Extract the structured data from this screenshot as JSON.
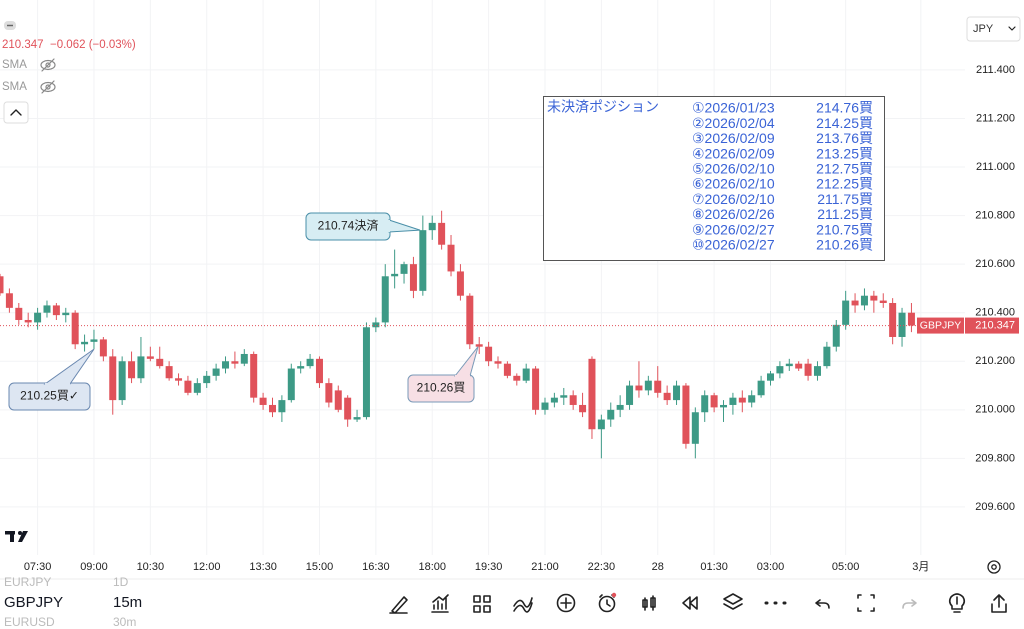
{
  "chart_data": {
    "type": "candlestick",
    "symbol": "GBPJPY",
    "currency": "JPY",
    "last_price": 210.347,
    "change_text": "−0.062 (−0.03%)",
    "indicators": [
      "SMA",
      "SMA"
    ],
    "up_color": "#3d9a86",
    "down_color": "#e0525a",
    "open": [
      210.55,
      210.48,
      210.42,
      210.37,
      210.36,
      210.4,
      210.43,
      210.39,
      210.4,
      210.27,
      210.28,
      210.29,
      210.22,
      210.04,
      210.2,
      210.13,
      210.22,
      210.21,
      210.18,
      210.13,
      210.12,
      210.07,
      210.11,
      210.14,
      210.17,
      210.2,
      210.19,
      210.23,
      210.05,
      210.02,
      209.99,
      210.04,
      210.17,
      210.18,
      210.21,
      210.11,
      210.08,
      210.05,
      209.96,
      209.97,
      210.34,
      210.36,
      210.55,
      210.56,
      210.6,
      210.49,
      210.74,
      210.77,
      210.68,
      210.57,
      210.47,
      210.27,
      210.26,
      210.2,
      210.19,
      210.14,
      210.12,
      210.17,
      210.0,
      210.03,
      210.05,
      210.06,
      210.02,
      210.21,
      209.92,
      209.96,
      210.0,
      210.02,
      210.1,
      210.08,
      210.12,
      210.07,
      210.04,
      210.1,
      209.86,
      209.99,
      210.06,
      210.01,
      210.02,
      210.05,
      210.03,
      210.06,
      210.12,
      210.15,
      210.18,
      210.19,
      210.19,
      210.14,
      210.18,
      210.26,
      210.35,
      210.45,
      210.43,
      210.47,
      210.45,
      210.44,
      210.3,
      210.4
    ],
    "high": [
      210.56,
      210.5,
      210.44,
      210.4,
      210.42,
      210.45,
      210.44,
      210.42,
      210.41,
      210.31,
      210.33,
      210.3,
      210.25,
      210.22,
      210.24,
      210.3,
      210.26,
      210.26,
      210.2,
      210.15,
      210.14,
      210.13,
      210.16,
      210.19,
      210.22,
      210.24,
      210.25,
      210.24,
      210.07,
      210.05,
      210.06,
      210.19,
      210.2,
      210.23,
      210.22,
      210.13,
      210.1,
      210.06,
      210.0,
      210.36,
      210.38,
      210.6,
      210.66,
      210.61,
      210.63,
      210.8,
      210.8,
      210.82,
      210.72,
      210.6,
      210.48,
      210.3,
      210.28,
      210.22,
      210.2,
      210.15,
      210.19,
      210.18,
      210.05,
      210.07,
      210.09,
      210.08,
      210.07,
      210.22,
      209.98,
      210.03,
      210.06,
      210.12,
      210.2,
      210.14,
      210.18,
      210.1,
      210.12,
      210.11,
      210.01,
      210.08,
      210.07,
      210.04,
      210.07,
      210.08,
      210.08,
      210.14,
      210.16,
      210.2,
      210.21,
      210.2,
      210.21,
      210.2,
      210.28,
      210.37,
      210.49,
      210.48,
      210.5,
      210.49,
      210.48,
      210.46,
      210.42,
      210.44
    ],
    "low": [
      210.47,
      210.4,
      210.35,
      210.34,
      210.33,
      210.38,
      210.37,
      210.36,
      210.25,
      210.24,
      210.25,
      210.2,
      209.98,
      210.02,
      210.11,
      210.11,
      210.2,
      210.17,
      210.12,
      210.1,
      210.06,
      210.06,
      210.09,
      210.12,
      210.15,
      210.17,
      210.18,
      210.03,
      210.0,
      209.97,
      209.95,
      210.03,
      210.15,
      210.17,
      210.09,
      210.01,
      209.99,
      209.93,
      209.95,
      209.96,
      210.32,
      210.34,
      210.5,
      210.52,
      210.46,
      210.47,
      210.7,
      210.66,
      210.55,
      210.45,
      210.25,
      210.23,
      210.18,
      210.17,
      210.13,
      210.1,
      210.11,
      209.98,
      209.98,
      210.01,
      210.02,
      210.0,
      209.97,
      209.88,
      209.8,
      209.93,
      209.97,
      210.0,
      210.05,
      210.06,
      210.05,
      210.02,
      210.02,
      209.84,
      209.8,
      209.95,
      209.99,
      209.95,
      209.98,
      209.99,
      210.01,
      210.05,
      210.1,
      210.13,
      210.16,
      210.16,
      210.12,
      210.12,
      210.17,
      210.24,
      210.33,
      210.4,
      210.41,
      210.4,
      210.42,
      210.27,
      210.26,
      210.32
    ],
    "close": [
      210.48,
      210.42,
      210.37,
      210.36,
      210.4,
      210.43,
      210.39,
      210.4,
      210.27,
      210.28,
      210.29,
      210.22,
      210.04,
      210.2,
      210.13,
      210.22,
      210.21,
      210.18,
      210.13,
      210.12,
      210.07,
      210.11,
      210.14,
      210.17,
      210.2,
      210.19,
      210.23,
      210.05,
      210.02,
      209.99,
      210.04,
      210.17,
      210.18,
      210.21,
      210.11,
      210.03,
      210.0,
      209.96,
      209.97,
      210.34,
      210.36,
      210.55,
      210.56,
      210.6,
      210.49,
      210.74,
      210.77,
      210.68,
      210.57,
      210.47,
      210.27,
      210.26,
      210.2,
      210.19,
      210.14,
      210.12,
      210.17,
      210.0,
      210.03,
      210.05,
      210.06,
      210.02,
      209.99,
      209.92,
      209.96,
      210.0,
      210.02,
      210.1,
      210.08,
      210.12,
      210.07,
      210.04,
      210.1,
      209.86,
      209.99,
      210.06,
      210.01,
      210.02,
      210.05,
      210.03,
      210.06,
      210.12,
      210.15,
      210.18,
      210.19,
      210.17,
      210.14,
      210.18,
      210.26,
      210.35,
      210.45,
      210.43,
      210.47,
      210.45,
      210.44,
      210.3,
      210.4,
      210.347
    ],
    "ylim": [
      209.402,
      211.688
    ],
    "yticks": [
      {
        "value": 209.6,
        "label": "209.600"
      },
      {
        "value": 209.8,
        "label": "209.800"
      },
      {
        "value": 210.0,
        "label": "210.000"
      },
      {
        "value": 210.2,
        "label": "210.200"
      },
      {
        "value": 210.4,
        "label": "210.400"
      },
      {
        "value": 210.6,
        "label": "210.600"
      },
      {
        "value": 210.8,
        "label": "210.800"
      },
      {
        "value": 211.0,
        "label": "211.000"
      },
      {
        "value": 211.2,
        "label": "211.200"
      },
      {
        "value": 211.4,
        "label": "211.400"
      }
    ],
    "xlim": [
      0,
      102.7
    ],
    "xticks": [
      {
        "value": 4,
        "label": "07:30"
      },
      {
        "value": 10,
        "label": "09:00"
      },
      {
        "value": 16,
        "label": "10:30"
      },
      {
        "value": 22,
        "label": "12:00"
      },
      {
        "value": 28,
        "label": "13:30"
      },
      {
        "value": 34,
        "label": "15:00"
      },
      {
        "value": 40,
        "label": "16:30"
      },
      {
        "value": 46,
        "label": "18:00"
      },
      {
        "value": 52,
        "label": "19:30"
      },
      {
        "value": 58,
        "label": "21:00"
      },
      {
        "value": 64,
        "label": "22:30"
      },
      {
        "value": 70,
        "label": "28"
      },
      {
        "value": 76,
        "label": "01:30"
      },
      {
        "value": 82,
        "label": "03:00"
      },
      {
        "value": 90,
        "label": "05:00"
      },
      {
        "value": 98,
        "label": "3月"
      }
    ],
    "grid": true,
    "annotations": [
      {
        "text": "210.74決済",
        "price": 210.74
      },
      {
        "text": "210.25買✓",
        "price": 210.25
      },
      {
        "text": "210.26買",
        "price": 210.26
      }
    ],
    "positions_title": "未決済ポジション",
    "positions": [
      {
        "date": "①2026/01/23",
        "price": "214.76買"
      },
      {
        "date": "②2026/02/04",
        "price": "214.25買"
      },
      {
        "date": "③2026/02/09",
        "price": "213.76買"
      },
      {
        "date": "④2026/02/09",
        "price": "213.25買"
      },
      {
        "date": "⑤2026/02/10",
        "price": "212.75買"
      },
      {
        "date": "⑥2026/02/10",
        "price": "212.25買"
      },
      {
        "date": "⑦2026/02/10",
        "price": "211.75買"
      },
      {
        "date": "⑧2026/02/26",
        "price": "211.25買"
      },
      {
        "date": "⑨2026/02/27",
        "price": "210.75買"
      },
      {
        "date": "⑩2026/02/27",
        "price": "210.26買"
      }
    ]
  },
  "watchlist": [
    {
      "symbol": "EURJPY",
      "interval": "1D"
    },
    {
      "symbol": "GBPJPY",
      "interval": "15m"
    },
    {
      "symbol": "EURUSD",
      "interval": "30m"
    }
  ]
}
